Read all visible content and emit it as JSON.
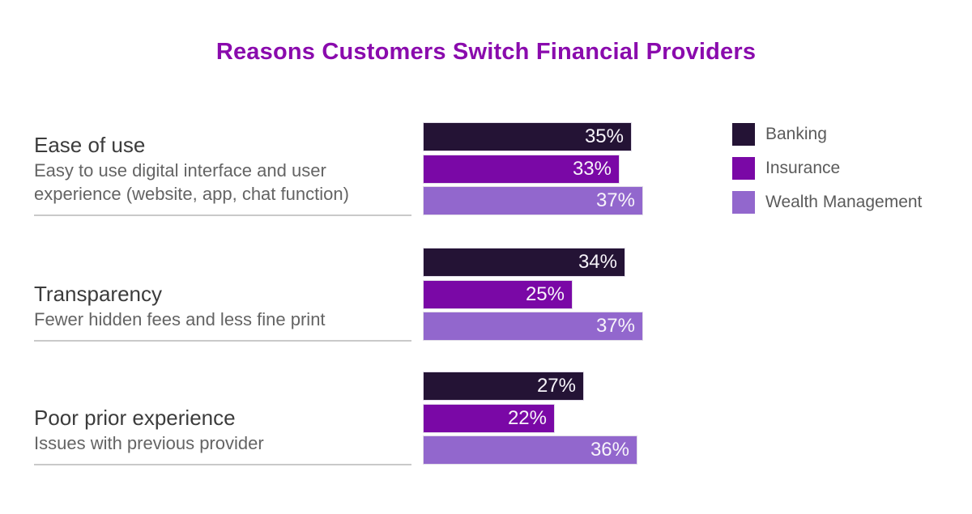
{
  "title": "Reasons Customers Switch Financial Providers",
  "colors": {
    "title": "#8a0bad",
    "heading": "#3c3c3c",
    "description": "#646464",
    "divider": "#c9c9c9",
    "value_label": "#f7f4fa",
    "legend_text": "#5b5b5b",
    "background": "#ffffff"
  },
  "chart_data": {
    "type": "bar",
    "orientation": "horizontal",
    "title": "Reasons Customers Switch Financial Providers",
    "legend_position": "right",
    "grid": false,
    "value_suffix": "%",
    "xlim": [
      0,
      40
    ],
    "categories": [
      {
        "label": "Ease of use",
        "description": "Easy to use digital interface and user experience (website, app, chat function)"
      },
      {
        "label": "Transparency",
        "description": "Fewer hidden fees and less fine print"
      },
      {
        "label": "Poor prior experience",
        "description": "Issues with previous provider"
      }
    ],
    "series": [
      {
        "name": "Banking",
        "color": "#241335",
        "values": [
          35,
          34,
          27
        ]
      },
      {
        "name": "Insurance",
        "color": "#7a08a6",
        "values": [
          33,
          25,
          22
        ]
      },
      {
        "name": "Wealth Management",
        "color": "#9267cd",
        "values": [
          37,
          37,
          36
        ]
      }
    ]
  }
}
